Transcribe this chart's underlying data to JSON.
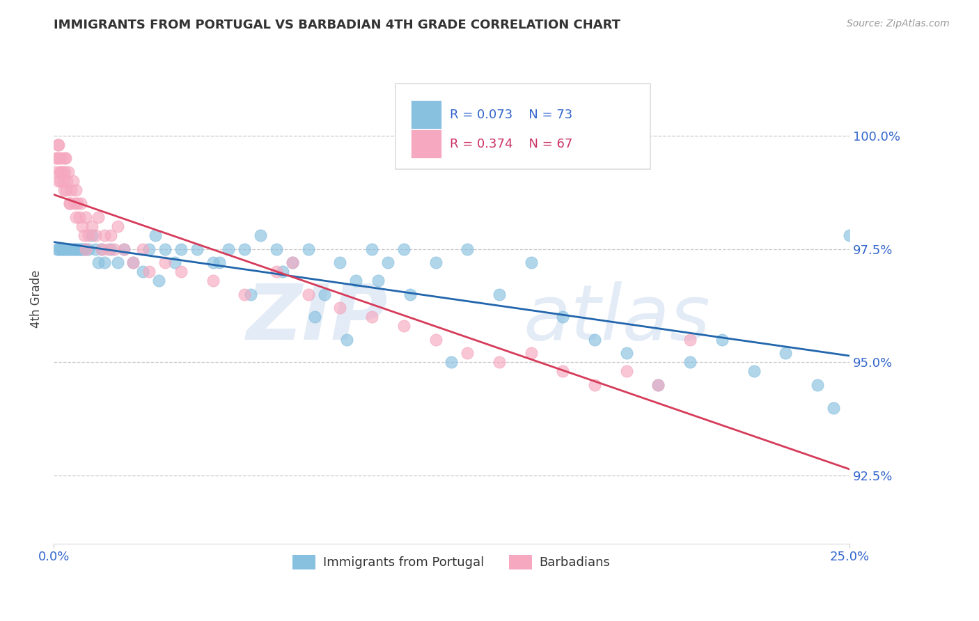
{
  "title": "IMMIGRANTS FROM PORTUGAL VS BARBADIAN 4TH GRADE CORRELATION CHART",
  "source": "Source: ZipAtlas.com",
  "ylabel": "4th Grade",
  "xlim": [
    0.0,
    25.0
  ],
  "ylim": [
    91.0,
    101.8
  ],
  "yticks": [
    92.5,
    95.0,
    97.5,
    100.0
  ],
  "ytick_labels": [
    "92.5%",
    "95.0%",
    "97.5%",
    "100.0%"
  ],
  "blue_R": 0.073,
  "blue_N": 73,
  "pink_R": 0.374,
  "pink_N": 67,
  "blue_color": "#88c0e0",
  "pink_color": "#f5a8bf",
  "blue_line_color": "#2166ac",
  "pink_line_color": "#d63b5a",
  "legend_blue_label": "Immigrants from Portugal",
  "legend_pink_label": "Barbadians",
  "blue_x": [
    0.1,
    0.15,
    0.2,
    0.25,
    0.3,
    0.35,
    0.4,
    0.45,
    0.5,
    0.55,
    0.6,
    0.65,
    0.7,
    0.75,
    0.8,
    0.85,
    0.9,
    0.95,
    1.0,
    1.1,
    1.2,
    1.3,
    1.4,
    1.5,
    1.6,
    1.8,
    2.0,
    2.2,
    2.5,
    2.8,
    3.0,
    3.2,
    3.5,
    3.8,
    4.0,
    4.5,
    5.0,
    5.5,
    6.0,
    6.5,
    7.0,
    7.5,
    8.0,
    8.5,
    9.0,
    9.5,
    10.0,
    10.5,
    11.0,
    12.0,
    13.0,
    14.0,
    15.0,
    16.0,
    17.0,
    18.0,
    19.0,
    20.0,
    21.0,
    22.0,
    23.0,
    24.0,
    24.5,
    3.3,
    5.2,
    6.2,
    7.2,
    8.2,
    9.2,
    10.2,
    11.2,
    12.5,
    25.0
  ],
  "blue_y": [
    97.5,
    97.5,
    97.5,
    97.5,
    97.5,
    97.5,
    97.5,
    97.5,
    97.5,
    97.5,
    97.5,
    97.5,
    97.5,
    97.5,
    97.5,
    97.5,
    97.5,
    97.5,
    97.5,
    97.5,
    97.8,
    97.5,
    97.2,
    97.5,
    97.2,
    97.5,
    97.2,
    97.5,
    97.2,
    97.0,
    97.5,
    97.8,
    97.5,
    97.2,
    97.5,
    97.5,
    97.2,
    97.5,
    97.5,
    97.8,
    97.5,
    97.2,
    97.5,
    96.5,
    97.2,
    96.8,
    97.5,
    97.2,
    97.5,
    97.2,
    97.5,
    96.5,
    97.2,
    96.0,
    95.5,
    95.2,
    94.5,
    95.0,
    95.5,
    94.8,
    95.2,
    94.5,
    94.0,
    96.8,
    97.2,
    96.5,
    97.0,
    96.0,
    95.5,
    96.8,
    96.5,
    95.0,
    97.8
  ],
  "pink_x": [
    0.05,
    0.08,
    0.1,
    0.12,
    0.15,
    0.18,
    0.2,
    0.22,
    0.25,
    0.28,
    0.3,
    0.32,
    0.35,
    0.38,
    0.4,
    0.42,
    0.45,
    0.5,
    0.55,
    0.6,
    0.65,
    0.7,
    0.75,
    0.8,
    0.85,
    0.9,
    0.95,
    1.0,
    1.1,
    1.2,
    1.3,
    1.4,
    1.5,
    1.6,
    1.7,
    1.8,
    1.9,
    2.0,
    2.2,
    2.5,
    2.8,
    3.0,
    3.5,
    4.0,
    5.0,
    6.0,
    7.0,
    7.5,
    8.0,
    9.0,
    10.0,
    11.0,
    12.0,
    13.0,
    14.0,
    15.0,
    16.0,
    17.0,
    18.0,
    19.0,
    20.0,
    0.15,
    0.22,
    0.35,
    0.5,
    0.7,
    1.0
  ],
  "pink_y": [
    99.2,
    99.5,
    99.5,
    99.8,
    99.8,
    99.5,
    99.2,
    99.0,
    99.5,
    99.2,
    99.0,
    98.8,
    99.2,
    99.5,
    98.8,
    99.0,
    99.2,
    98.5,
    98.8,
    99.0,
    98.5,
    98.8,
    98.5,
    98.2,
    98.5,
    98.0,
    97.8,
    98.2,
    97.8,
    98.0,
    97.8,
    98.2,
    97.5,
    97.8,
    97.5,
    97.8,
    97.5,
    98.0,
    97.5,
    97.2,
    97.5,
    97.0,
    97.2,
    97.0,
    96.8,
    96.5,
    97.0,
    97.2,
    96.5,
    96.2,
    96.0,
    95.8,
    95.5,
    95.2,
    95.0,
    95.2,
    94.8,
    94.5,
    94.8,
    94.5,
    95.5,
    99.0,
    99.2,
    99.5,
    98.5,
    98.2,
    97.5
  ]
}
